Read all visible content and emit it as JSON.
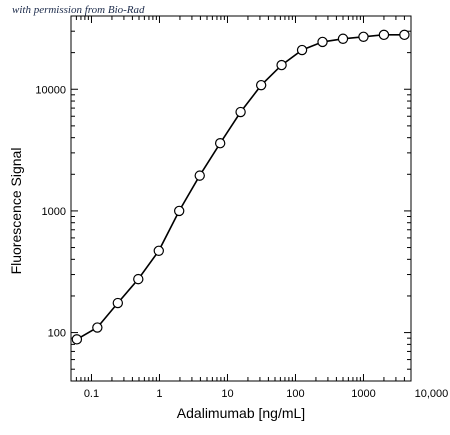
{
  "caption": "with permission from Bio-Rad",
  "chart_data": {
    "type": "line",
    "title": "",
    "xlabel": "Adalimumab [ng/mL]",
    "ylabel": "Fluorescence Signal",
    "xscale": "log",
    "yscale": "log",
    "xlim": [
      0.05,
      5000
    ],
    "ylim": [
      40,
      40000
    ],
    "grid": false,
    "legend": "none",
    "x_ticks": [
      {
        "value": 0.1,
        "label": "0.1"
      },
      {
        "value": 1,
        "label": "1"
      },
      {
        "value": 10,
        "label": "10"
      },
      {
        "value": 100,
        "label": "100"
      },
      {
        "value": 1000,
        "label": "1000"
      },
      {
        "value": 10000,
        "label": "10,000"
      }
    ],
    "y_ticks": [
      {
        "value": 100,
        "label": "100"
      },
      {
        "value": 1000,
        "label": "1000"
      },
      {
        "value": 10000,
        "label": "10000"
      }
    ],
    "series": [
      {
        "x": [
          0.061,
          0.122,
          0.244,
          0.488,
          0.977,
          1.95,
          3.91,
          7.81,
          15.6,
          31.3,
          62.5,
          125,
          250,
          500,
          1000,
          2000,
          4000
        ],
        "y": [
          88,
          110,
          175,
          275,
          470,
          1000,
          1950,
          3600,
          6500,
          10800,
          15800,
          21000,
          24500,
          26000,
          27000,
          28000,
          28000
        ]
      }
    ]
  }
}
